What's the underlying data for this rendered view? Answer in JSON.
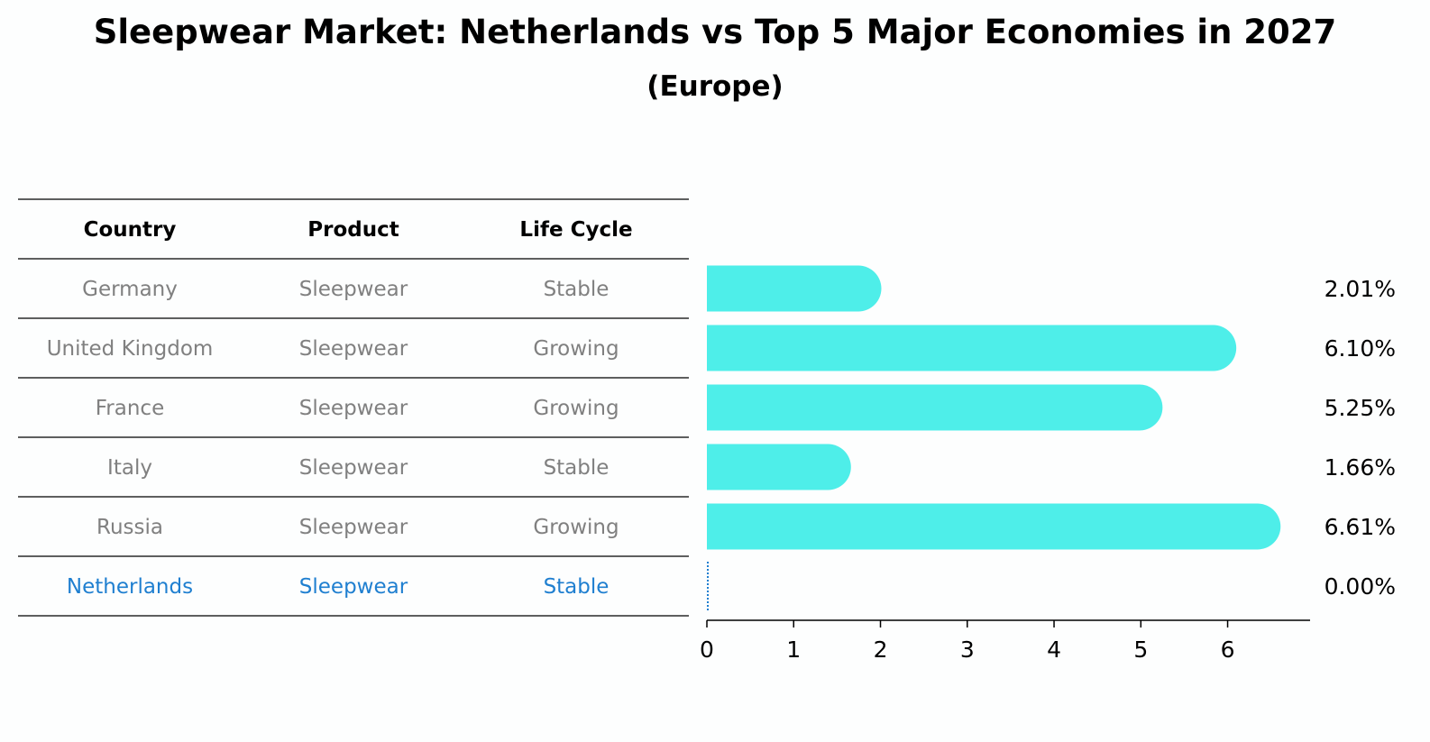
{
  "title": "Sleepwear Market: Netherlands vs Top 5 Major Economies in 2027",
  "subtitle": "(Europe)",
  "colors": {
    "bar": "#4eeee9",
    "highlight_text": "#1f7fd0",
    "muted_text": "#808080",
    "header_text": "#000000",
    "rule": "#000000"
  },
  "table": {
    "headers": [
      "Country",
      "Product",
      "Life Cycle"
    ],
    "rows": [
      {
        "country": "Germany",
        "product": "Sleepwear",
        "life_cycle": "Stable",
        "highlight": false
      },
      {
        "country": "United Kingdom",
        "product": "Sleepwear",
        "life_cycle": "Growing",
        "highlight": false
      },
      {
        "country": "France",
        "product": "Sleepwear",
        "life_cycle": "Growing",
        "highlight": false
      },
      {
        "country": "Italy",
        "product": "Sleepwear",
        "life_cycle": "Stable",
        "highlight": false
      },
      {
        "country": "Russia",
        "product": "Sleepwear",
        "life_cycle": "Growing",
        "highlight": false
      },
      {
        "country": "Netherlands",
        "product": "Sleepwear",
        "life_cycle": "Stable",
        "highlight": true
      }
    ]
  },
  "chart_data": {
    "type": "bar",
    "orientation": "horizontal",
    "categories": [
      "Germany",
      "United Kingdom",
      "France",
      "Italy",
      "Russia",
      "Netherlands"
    ],
    "values": [
      2.01,
      6.1,
      5.25,
      1.66,
      6.61,
      0.0
    ],
    "value_labels": [
      "2.01%",
      "6.10%",
      "5.25%",
      "1.66%",
      "6.61%",
      "0.00%"
    ],
    "xlim": [
      0,
      6.95
    ],
    "xticks": [
      0,
      1,
      2,
      3,
      4,
      5,
      6
    ],
    "xtick_labels": [
      "0",
      "1",
      "2",
      "3",
      "4",
      "5",
      "6"
    ],
    "grid": false,
    "bar_style": "rounded"
  }
}
